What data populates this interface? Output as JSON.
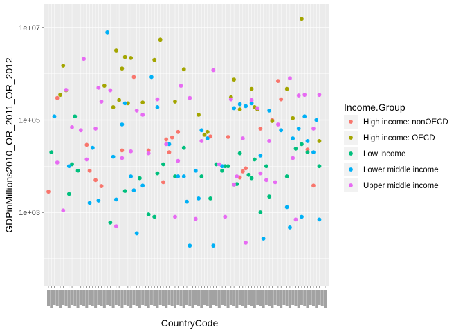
{
  "chart_data": {
    "type": "scatter",
    "xlabel": "CountryCode",
    "ylabel": "GDPinMillions2010_OR_2011_OR_2012",
    "y_scale": "log10",
    "ylim": [
      5,
      35000000
    ],
    "y_ticks": [
      {
        "value": 1000,
        "label": "1e+03"
      },
      {
        "value": 100000,
        "label": "1e+05"
      },
      {
        "value": 10000000,
        "label": "1e+07"
      }
    ],
    "x_tick_labels": "country codes (overlapping, illegible)",
    "grid": true,
    "background": "#ebebeb",
    "legend": {
      "title": "Income.Group",
      "position": "right",
      "entries": [
        {
          "name": "High income: nonOECD",
          "color": "#F8766D"
        },
        {
          "name": "High income: OECD",
          "color": "#A3A500"
        },
        {
          "name": "Low income",
          "color": "#00BF7D"
        },
        {
          "name": "Lower middle income",
          "color": "#00B0F6"
        },
        {
          "name": "Upper middle income",
          "color": "#E76BF3"
        }
      ]
    },
    "series": [
      {
        "name": "High income: nonOECD",
        "color": "#F8766D",
        "points": [
          [
            1,
            2800
          ],
          [
            4,
            300000
          ],
          [
            14,
            29000
          ],
          [
            15,
            8000
          ],
          [
            17,
            5000
          ],
          [
            19,
            3700
          ],
          [
            26,
            22000
          ],
          [
            30,
            850000
          ],
          [
            35,
            22000
          ],
          [
            40,
            4500
          ],
          [
            41,
            38000
          ],
          [
            42,
            20000
          ],
          [
            43,
            42000
          ],
          [
            45,
            55000
          ],
          [
            56,
            44000
          ],
          [
            62,
            43000
          ],
          [
            66,
            5700
          ],
          [
            67,
            7700
          ],
          [
            68,
            9000
          ],
          [
            73,
            65000
          ],
          [
            77,
            100000
          ],
          [
            79,
            700000
          ],
          [
            80,
            280000
          ],
          [
            89,
            23000
          ],
          [
            91,
            3800
          ]
        ]
      },
      {
        "name": "High income: OECD",
        "color": "#A3A500",
        "points": [
          [
            5,
            350000
          ],
          [
            6,
            1500000
          ],
          [
            7,
            440000
          ],
          [
            20,
            550000
          ],
          [
            23,
            190000
          ],
          [
            24,
            3200000
          ],
          [
            25,
            270000
          ],
          [
            26,
            1300000
          ],
          [
            27,
            2300000
          ],
          [
            28,
            230000
          ],
          [
            29,
            2200000
          ],
          [
            33,
            240000
          ],
          [
            37,
            2000000
          ],
          [
            39,
            5500000
          ],
          [
            44,
            250000
          ],
          [
            47,
            1250000
          ],
          [
            52,
            130000
          ],
          [
            54,
            48000
          ],
          [
            55,
            55000
          ],
          [
            63,
            310000
          ],
          [
            64,
            750000
          ],
          [
            66,
            170000
          ],
          [
            70,
            470000
          ],
          [
            71,
            190000
          ],
          [
            72,
            170000
          ],
          [
            77,
            95000
          ],
          [
            82,
            470000
          ],
          [
            84,
            110000
          ],
          [
            87,
            15500000
          ],
          [
            93,
            35000
          ]
        ]
      },
      {
        "name": "Low income",
        "color": "#00BF7D",
        "points": [
          [
            2,
            20000
          ],
          [
            8,
            2500
          ],
          [
            9,
            11000
          ],
          [
            10,
            120000
          ],
          [
            11,
            8000
          ],
          [
            22,
            600
          ],
          [
            27,
            2900
          ],
          [
            32,
            5500
          ],
          [
            35,
            900
          ],
          [
            37,
            800
          ],
          [
            38,
            7000
          ],
          [
            40,
            11000
          ],
          [
            44,
            6000
          ],
          [
            47,
            25000
          ],
          [
            53,
            6000
          ],
          [
            56,
            2000
          ],
          [
            58,
            11000
          ],
          [
            60,
            8000
          ],
          [
            61,
            10000
          ],
          [
            62,
            10000
          ],
          [
            64,
            4000
          ],
          [
            65,
            4100
          ],
          [
            66,
            19000
          ],
          [
            69,
            6500
          ],
          [
            70,
            5500
          ],
          [
            71,
            14000
          ],
          [
            73,
            1000
          ],
          [
            75,
            10000
          ],
          [
            76,
            2200
          ],
          [
            82,
            6000
          ],
          [
            85,
            24000
          ],
          [
            87,
            30000
          ],
          [
            89,
            20000
          ],
          [
            93,
            10000
          ]
        ]
      },
      {
        "name": "Lower middle income",
        "color": "#00B0F6",
        "points": [
          [
            3,
            120000
          ],
          [
            8,
            10000
          ],
          [
            15,
            1600
          ],
          [
            16,
            25000
          ],
          [
            18,
            1800
          ],
          [
            21,
            7900000
          ],
          [
            23,
            16000
          ],
          [
            24,
            1900
          ],
          [
            26,
            80000
          ],
          [
            27,
            230000
          ],
          [
            29,
            6000
          ],
          [
            30,
            3000
          ],
          [
            31,
            350
          ],
          [
            33,
            3800
          ],
          [
            36,
            850000
          ],
          [
            38,
            190000
          ],
          [
            42,
            30000
          ],
          [
            45,
            6000
          ],
          [
            47,
            6000
          ],
          [
            48,
            1700
          ],
          [
            49,
            190
          ],
          [
            51,
            8000
          ],
          [
            52,
            2000
          ],
          [
            53,
            60000
          ],
          [
            55,
            40000
          ],
          [
            57,
            190
          ],
          [
            60,
            10000
          ],
          [
            64,
            180000
          ],
          [
            66,
            220000
          ],
          [
            68,
            200000
          ],
          [
            70,
            230000
          ],
          [
            73,
            17000
          ],
          [
            74,
            270
          ],
          [
            76,
            160000
          ],
          [
            80,
            60000
          ],
          [
            82,
            1300
          ],
          [
            83,
            470
          ],
          [
            84,
            40000
          ],
          [
            86,
            65000
          ],
          [
            87,
            800
          ],
          [
            88,
            120000
          ],
          [
            89,
            35000
          ],
          [
            91,
            20000
          ],
          [
            92,
            100000
          ],
          [
            93,
            700
          ]
        ]
      },
      {
        "name": "Upper middle income",
        "color": "#E76BF3",
        "points": [
          [
            4,
            12000
          ],
          [
            6,
            1100
          ],
          [
            7,
            450000
          ],
          [
            9,
            70000
          ],
          [
            12,
            60000
          ],
          [
            13,
            2100000
          ],
          [
            14,
            14000
          ],
          [
            17,
            65000
          ],
          [
            18,
            500000
          ],
          [
            19,
            250000
          ],
          [
            22,
            440000
          ],
          [
            24,
            500
          ],
          [
            26,
            15000
          ],
          [
            29,
            21000
          ],
          [
            31,
            160000
          ],
          [
            33,
            130000
          ],
          [
            35,
            19000
          ],
          [
            38,
            280000
          ],
          [
            41,
            30000
          ],
          [
            44,
            800
          ],
          [
            45,
            13000
          ],
          [
            46,
            550000
          ],
          [
            49,
            300000
          ],
          [
            51,
            720
          ],
          [
            53,
            35000
          ],
          [
            57,
            1200000
          ],
          [
            59,
            11000
          ],
          [
            61,
            800
          ],
          [
            63,
            280000
          ],
          [
            64,
            4000
          ],
          [
            65,
            6000
          ],
          [
            67,
            40000
          ],
          [
            68,
            220
          ],
          [
            70,
            270000
          ],
          [
            72,
            180000
          ],
          [
            73,
            7000
          ],
          [
            75,
            5000
          ],
          [
            76,
            35000
          ],
          [
            78,
            4500
          ],
          [
            79,
            80000
          ],
          [
            83,
            800000
          ],
          [
            84,
            15000
          ],
          [
            85,
            700
          ],
          [
            86,
            340000
          ],
          [
            88,
            350000
          ],
          [
            91,
            65000
          ],
          [
            93,
            350000
          ]
        ]
      }
    ]
  }
}
